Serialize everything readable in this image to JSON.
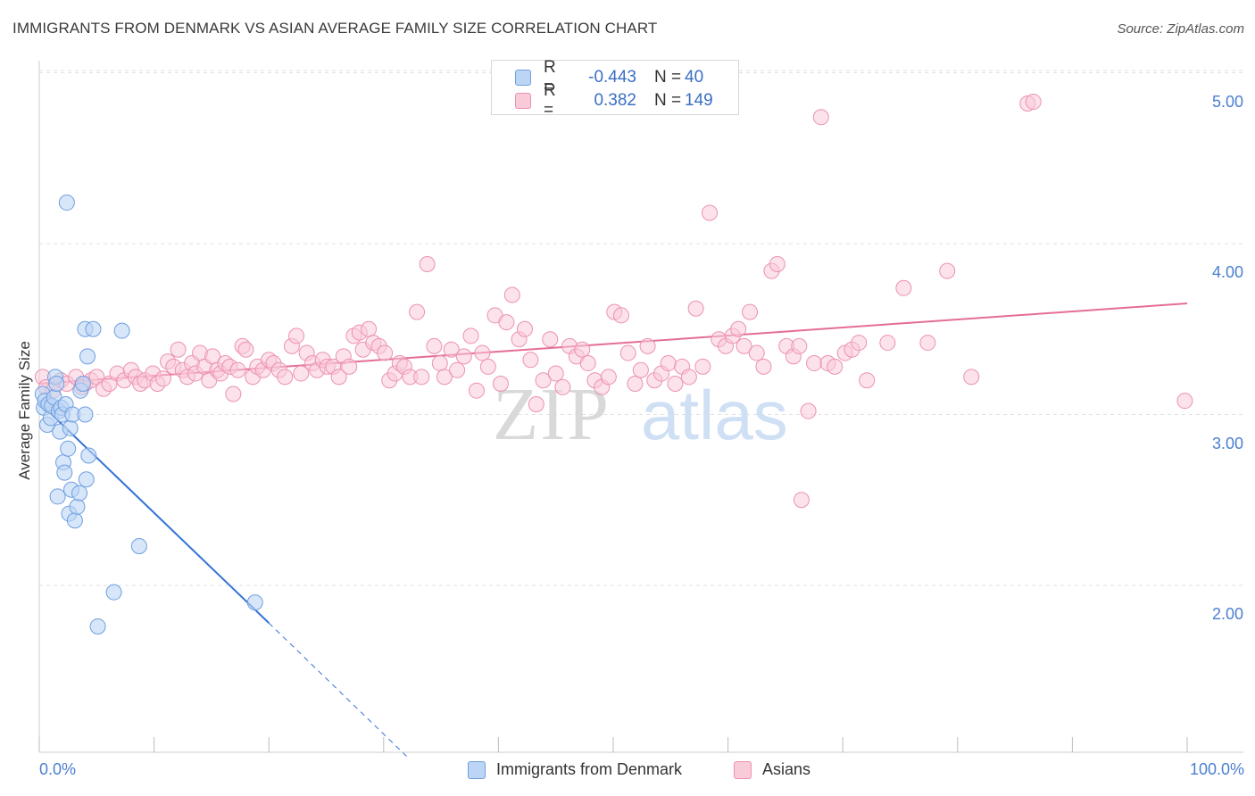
{
  "title": "IMMIGRANTS FROM DENMARK VS ASIAN AVERAGE FAMILY SIZE CORRELATION CHART",
  "source": "Source: ZipAtlas.com",
  "watermark": {
    "zip": "ZIP",
    "atlas": "atlas"
  },
  "legend": {
    "rows": [
      {
        "r_label": "R =",
        "r_value": "-0.443",
        "n_label": "N =",
        "n_value": "40",
        "color": "#a9c8f2",
        "border": "#6f9fe0"
      },
      {
        "r_label": "R =",
        "r_value": "0.382",
        "n_label": "N =",
        "n_value": "149",
        "color": "#f8c5d5",
        "border": "#ee8fb0"
      }
    ]
  },
  "bottom_legend": {
    "denmark": "Immigrants from Denmark",
    "asians": "Asians"
  },
  "colors": {
    "blue_line": "#3572d6",
    "pink_line": "#e46d96",
    "blue_fill": "#bdd5f5",
    "blue_stroke": "#6f9fe0",
    "pink_fill": "#f9cbd9",
    "pink_stroke": "#ec92b1",
    "tick_text": "#4a7fd0",
    "grid": "#e2e2e2"
  },
  "chart_data": {
    "type": "scatter",
    "title": "IMMIGRANTS FROM DENMARK VS ASIAN AVERAGE FAMILY SIZE CORRELATION CHART",
    "ylabel": "Average Family Size",
    "xlabel": "",
    "xlim": [
      0,
      100
    ],
    "ylim": [
      1.0,
      5.1
    ],
    "x_tick_labels": [
      "0.0%",
      "100.0%"
    ],
    "y_ticks": [
      2.0,
      3.0,
      4.0,
      5.0
    ],
    "y_tick_labels": [
      "2.00",
      "3.00",
      "4.00",
      "5.00"
    ],
    "grid": true,
    "series": [
      {
        "name": "Immigrants from Denmark",
        "trend": {
          "x": [
            0,
            20
          ],
          "y": [
            3.07,
            1.78
          ],
          "dashed_to": [
            32,
            1.0
          ]
        },
        "points": [
          [
            0.3,
            3.12
          ],
          [
            0.4,
            3.04
          ],
          [
            0.5,
            3.08
          ],
          [
            0.7,
            2.94
          ],
          [
            0.8,
            3.06
          ],
          [
            1.0,
            2.98
          ],
          [
            1.1,
            3.05
          ],
          [
            1.3,
            3.1
          ],
          [
            1.4,
            3.22
          ],
          [
            1.5,
            3.18
          ],
          [
            1.6,
            2.52
          ],
          [
            1.7,
            3.02
          ],
          [
            1.8,
            2.9
          ],
          [
            1.9,
            3.04
          ],
          [
            2.0,
            3.0
          ],
          [
            2.1,
            2.72
          ],
          [
            2.2,
            2.66
          ],
          [
            2.3,
            3.06
          ],
          [
            2.4,
            4.24
          ],
          [
            2.5,
            2.8
          ],
          [
            2.6,
            2.42
          ],
          [
            2.7,
            2.92
          ],
          [
            2.8,
            2.56
          ],
          [
            2.9,
            3.0
          ],
          [
            3.1,
            2.38
          ],
          [
            3.3,
            2.46
          ],
          [
            3.5,
            2.54
          ],
          [
            3.6,
            3.14
          ],
          [
            3.8,
            3.18
          ],
          [
            4.0,
            3.5
          ],
          [
            4.0,
            3.0
          ],
          [
            4.1,
            2.62
          ],
          [
            4.2,
            3.34
          ],
          [
            4.3,
            2.76
          ],
          [
            4.7,
            3.5
          ],
          [
            5.1,
            1.76
          ],
          [
            6.5,
            1.96
          ],
          [
            7.2,
            3.49
          ],
          [
            8.7,
            2.23
          ],
          [
            18.8,
            1.9
          ]
        ]
      },
      {
        "name": "Asians",
        "trend": {
          "x": [
            0,
            100
          ],
          "y": [
            3.18,
            3.65
          ]
        },
        "points": [
          [
            0.3,
            3.22
          ],
          [
            0.6,
            3.16
          ],
          [
            1.2,
            3.14
          ],
          [
            1.9,
            3.2
          ],
          [
            2.4,
            3.18
          ],
          [
            3.2,
            3.22
          ],
          [
            3.7,
            3.16
          ],
          [
            4.0,
            3.18
          ],
          [
            4.5,
            3.2
          ],
          [
            5.0,
            3.22
          ],
          [
            5.6,
            3.15
          ],
          [
            6.1,
            3.18
          ],
          [
            6.8,
            3.24
          ],
          [
            7.4,
            3.2
          ],
          [
            8.0,
            3.26
          ],
          [
            8.4,
            3.22
          ],
          [
            8.8,
            3.18
          ],
          [
            9.2,
            3.2
          ],
          [
            9.9,
            3.24
          ],
          [
            10.3,
            3.18
          ],
          [
            10.8,
            3.21
          ],
          [
            11.2,
            3.31
          ],
          [
            11.7,
            3.28
          ],
          [
            12.1,
            3.38
          ],
          [
            12.5,
            3.26
          ],
          [
            12.9,
            3.22
          ],
          [
            13.3,
            3.3
          ],
          [
            13.6,
            3.24
          ],
          [
            14.0,
            3.36
          ],
          [
            14.4,
            3.28
          ],
          [
            14.8,
            3.2
          ],
          [
            15.1,
            3.34
          ],
          [
            15.5,
            3.26
          ],
          [
            15.8,
            3.24
          ],
          [
            16.2,
            3.3
          ],
          [
            16.6,
            3.28
          ],
          [
            16.9,
            3.12
          ],
          [
            17.3,
            3.26
          ],
          [
            17.7,
            3.4
          ],
          [
            18.0,
            3.38
          ],
          [
            18.6,
            3.22
          ],
          [
            19.0,
            3.28
          ],
          [
            19.5,
            3.26
          ],
          [
            20.0,
            3.32
          ],
          [
            20.4,
            3.3
          ],
          [
            20.9,
            3.26
          ],
          [
            21.4,
            3.22
          ],
          [
            22.0,
            3.4
          ],
          [
            22.4,
            3.46
          ],
          [
            22.8,
            3.24
          ],
          [
            23.3,
            3.36
          ],
          [
            23.8,
            3.3
          ],
          [
            24.2,
            3.26
          ],
          [
            24.7,
            3.32
          ],
          [
            25.1,
            3.28
          ],
          [
            25.6,
            3.28
          ],
          [
            26.1,
            3.22
          ],
          [
            26.5,
            3.34
          ],
          [
            27.0,
            3.28
          ],
          [
            27.4,
            3.46
          ],
          [
            27.9,
            3.48
          ],
          [
            28.2,
            3.38
          ],
          [
            28.7,
            3.5
          ],
          [
            29.1,
            3.42
          ],
          [
            29.6,
            3.4
          ],
          [
            30.1,
            3.36
          ],
          [
            30.5,
            3.2
          ],
          [
            31.0,
            3.24
          ],
          [
            31.4,
            3.3
          ],
          [
            31.8,
            3.28
          ],
          [
            32.3,
            3.22
          ],
          [
            32.9,
            3.6
          ],
          [
            33.3,
            3.22
          ],
          [
            33.8,
            3.88
          ],
          [
            34.4,
            3.4
          ],
          [
            34.9,
            3.3
          ],
          [
            35.3,
            3.22
          ],
          [
            35.9,
            3.38
          ],
          [
            36.4,
            3.26
          ],
          [
            37.0,
            3.34
          ],
          [
            37.6,
            3.46
          ],
          [
            38.1,
            3.14
          ],
          [
            38.6,
            3.36
          ],
          [
            39.1,
            3.28
          ],
          [
            39.7,
            3.58
          ],
          [
            40.2,
            3.18
          ],
          [
            40.7,
            3.54
          ],
          [
            41.2,
            3.7
          ],
          [
            41.8,
            3.44
          ],
          [
            42.3,
            3.5
          ],
          [
            42.8,
            3.32
          ],
          [
            43.3,
            3.06
          ],
          [
            43.9,
            3.2
          ],
          [
            44.5,
            3.44
          ],
          [
            45.0,
            3.24
          ],
          [
            45.6,
            3.16
          ],
          [
            46.2,
            3.4
          ],
          [
            46.8,
            3.34
          ],
          [
            47.3,
            3.38
          ],
          [
            47.8,
            3.3
          ],
          [
            48.4,
            3.2
          ],
          [
            49.0,
            3.16
          ],
          [
            49.6,
            3.22
          ],
          [
            50.1,
            3.6
          ],
          [
            50.7,
            3.58
          ],
          [
            51.3,
            3.36
          ],
          [
            51.9,
            3.18
          ],
          [
            52.4,
            3.26
          ],
          [
            53.0,
            3.4
          ],
          [
            53.6,
            3.2
          ],
          [
            54.2,
            3.24
          ],
          [
            54.8,
            3.3
          ],
          [
            55.4,
            3.18
          ],
          [
            56.0,
            3.28
          ],
          [
            56.6,
            3.22
          ],
          [
            57.2,
            3.62
          ],
          [
            57.8,
            3.28
          ],
          [
            58.4,
            4.18
          ],
          [
            59.2,
            3.44
          ],
          [
            59.8,
            3.4
          ],
          [
            60.4,
            3.46
          ],
          [
            60.9,
            3.5
          ],
          [
            61.4,
            3.4
          ],
          [
            61.9,
            3.6
          ],
          [
            62.5,
            3.36
          ],
          [
            63.1,
            3.28
          ],
          [
            63.8,
            3.84
          ],
          [
            64.3,
            3.88
          ],
          [
            65.1,
            3.4
          ],
          [
            65.7,
            3.34
          ],
          [
            66.2,
            3.4
          ],
          [
            67.0,
            3.02
          ],
          [
            67.5,
            3.3
          ],
          [
            68.1,
            4.74
          ],
          [
            68.7,
            3.3
          ],
          [
            69.3,
            3.28
          ],
          [
            70.2,
            3.36
          ],
          [
            70.8,
            3.38
          ],
          [
            71.4,
            3.42
          ],
          [
            72.1,
            3.2
          ],
          [
            73.9,
            3.42
          ],
          [
            75.3,
            3.74
          ],
          [
            77.4,
            3.42
          ],
          [
            79.1,
            3.84
          ],
          [
            81.2,
            3.22
          ],
          [
            86.1,
            4.82
          ],
          [
            86.6,
            4.83
          ],
          [
            66.4,
            2.5
          ],
          [
            99.8,
            3.08
          ]
        ]
      }
    ]
  }
}
